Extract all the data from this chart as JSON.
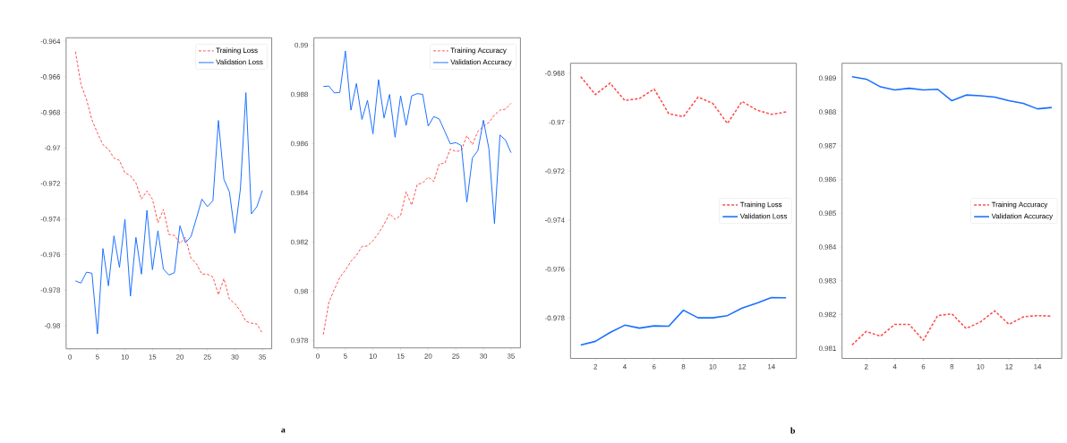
{
  "chart_data": [
    {
      "type": "line",
      "x": [
        1,
        2,
        3,
        4,
        5,
        6,
        7,
        8,
        9,
        10,
        11,
        12,
        13,
        14,
        15,
        16,
        17,
        18,
        19,
        20,
        21,
        22,
        23,
        24,
        25,
        26,
        27,
        28,
        29,
        30,
        31,
        32,
        33,
        34,
        35
      ],
      "series": [
        {
          "name": "Training Loss",
          "color": "#ff4d4d",
          "line_style": "dashed",
          "values": [
            -0.96458,
            -0.96643,
            -0.96726,
            -0.96842,
            -0.96916,
            -0.96982,
            -0.97007,
            -0.97057,
            -0.9707,
            -0.9714,
            -0.97156,
            -0.97197,
            -0.97288,
            -0.97242,
            -0.97288,
            -0.97421,
            -0.97346,
            -0.97487,
            -0.97492,
            -0.97537,
            -0.97503,
            -0.97619,
            -0.97652,
            -0.9771,
            -0.9771,
            -0.97726,
            -0.97826,
            -0.97735,
            -0.97851,
            -0.97876,
            -0.97917,
            -0.97975,
            -0.97986,
            -0.97991,
            -0.98041
          ]
        },
        {
          "name": "Validation Loss",
          "color": "#1a6fff",
          "line_style": "solid",
          "values": [
            -0.97748,
            -0.9776,
            -0.97699,
            -0.97705,
            -0.98046,
            -0.97566,
            -0.97776,
            -0.97495,
            -0.97672,
            -0.97401,
            -0.97834,
            -0.97503,
            -0.9771,
            -0.97351,
            -0.97685,
            -0.97466,
            -0.97682,
            -0.97715,
            -0.97702,
            -0.97438,
            -0.97533,
            -0.975,
            -0.97396,
            -0.97288,
            -0.9733,
            -0.97297,
            -0.96845,
            -0.97176,
            -0.97247,
            -0.97479,
            -0.9723,
            -0.96689,
            -0.97371,
            -0.9733,
            -0.97239
          ]
        }
      ],
      "xlim": [
        -0.7,
        36.7
      ],
      "ylim": [
        -0.9813,
        -0.9638
      ],
      "xticks": [
        0,
        5,
        10,
        15,
        20,
        25,
        30,
        35
      ],
      "yticks": [
        -0.98,
        -0.978,
        -0.976,
        -0.974,
        -0.972,
        -0.97,
        -0.968,
        -0.966,
        -0.964
      ],
      "legend": "top right",
      "grid": false,
      "annotations": [
        "a"
      ]
    },
    {
      "type": "line",
      "x": [
        1,
        2,
        3,
        4,
        5,
        6,
        7,
        8,
        9,
        10,
        11,
        12,
        13,
        14,
        15,
        16,
        17,
        18,
        19,
        20,
        21,
        22,
        23,
        24,
        25,
        26,
        27,
        28,
        29,
        30,
        31,
        32,
        33,
        34,
        35
      ],
      "series": [
        {
          "name": "Training Accuracy",
          "color": "#ff4d4d",
          "line_style": "dashed",
          "values": [
            0.97824,
            0.97954,
            0.98008,
            0.98056,
            0.98086,
            0.98122,
            0.98146,
            0.98182,
            0.98184,
            0.98206,
            0.98236,
            0.98272,
            0.98316,
            0.98292,
            0.98308,
            0.98404,
            0.9835,
            0.98434,
            0.9844,
            0.98464,
            0.98446,
            0.98518,
            0.9852,
            0.98578,
            0.98568,
            0.98572,
            0.98632,
            0.98596,
            0.9865,
            0.98671,
            0.98686,
            0.98716,
            0.98736,
            0.9874,
            0.98764
          ]
        },
        {
          "name": "Validation Accuracy",
          "color": "#1a6fff",
          "line_style": "solid",
          "values": [
            0.98832,
            0.98834,
            0.98806,
            0.98808,
            0.98976,
            0.98736,
            0.98844,
            0.98698,
            0.98776,
            0.9864,
            0.9886,
            0.98704,
            0.988,
            0.98626,
            0.98794,
            0.98674,
            0.98794,
            0.98803,
            0.988,
            0.98671,
            0.9871,
            0.987,
            0.9865,
            0.98599,
            0.98604,
            0.98592,
            0.98362,
            0.98542,
            0.98572,
            0.98695,
            0.98578,
            0.98275,
            0.98635,
            0.98614,
            0.98563
          ]
        }
      ],
      "xlim": [
        -0.7,
        36.7
      ],
      "ylim": [
        0.9777,
        0.9903
      ],
      "xticks": [
        0,
        5,
        10,
        15,
        20,
        25,
        30,
        35
      ],
      "yticks": [
        0.978,
        0.98,
        0.982,
        0.984,
        0.986,
        0.988,
        0.99
      ],
      "legend": "top right",
      "grid": false
    },
    {
      "type": "line",
      "x": [
        1,
        2,
        3,
        4,
        5,
        6,
        7,
        8,
        9,
        10,
        11,
        12,
        13,
        14,
        15
      ],
      "series": [
        {
          "name": "Training Loss",
          "color": "#ff4d4d",
          "line_style": "dashed",
          "values": [
            -0.96814,
            -0.96887,
            -0.9684,
            -0.96911,
            -0.96903,
            -0.96864,
            -0.96965,
            -0.96977,
            -0.96897,
            -0.96923,
            -0.97005,
            -0.96915,
            -0.9695,
            -0.96968,
            -0.96958
          ]
        },
        {
          "name": "Validation Loss",
          "color": "#1a6fff",
          "line_style": "solid",
          "values": [
            -0.9791,
            -0.97895,
            -0.97859,
            -0.97829,
            -0.97841,
            -0.97832,
            -0.97833,
            -0.97768,
            -0.97799,
            -0.97799,
            -0.9779,
            -0.97759,
            -0.97739,
            -0.97716,
            -0.97717
          ]
        }
      ],
      "xlim": [
        0.3,
        15.7
      ],
      "ylim": [
        -0.97965,
        -0.96759
      ],
      "xticks": [
        2,
        4,
        6,
        8,
        10,
        12,
        14
      ],
      "yticks": [
        -0.978,
        -0.976,
        -0.974,
        -0.972,
        -0.97,
        -0.968
      ],
      "legend": "right",
      "grid": false,
      "annotations": [
        "b"
      ]
    },
    {
      "type": "line",
      "x": [
        1,
        2,
        3,
        4,
        5,
        6,
        7,
        8,
        9,
        10,
        11,
        12,
        13,
        14,
        15
      ],
      "series": [
        {
          "name": "Training Accuracy",
          "color": "#ff4d4d",
          "line_style": "dashed",
          "values": [
            0.9811,
            0.9815,
            0.98136,
            0.98171,
            0.98171,
            0.98124,
            0.98197,
            0.98202,
            0.98159,
            0.98178,
            0.98211,
            0.98171,
            0.98193,
            0.98197,
            0.98195
          ]
        },
        {
          "name": "Validation Accuracy",
          "color": "#1a6fff",
          "line_style": "solid",
          "values": [
            0.98904,
            0.98897,
            0.98874,
            0.98865,
            0.9887,
            0.98865,
            0.98867,
            0.98833,
            0.9885,
            0.98848,
            0.98844,
            0.98833,
            0.98825,
            0.98809,
            0.98813
          ]
        }
      ],
      "xlim": [
        0.3,
        15.7
      ],
      "ylim": [
        0.9807,
        0.98944
      ],
      "xticks": [
        2,
        4,
        6,
        8,
        10,
        12,
        14
      ],
      "yticks": [
        0.981,
        0.982,
        0.983,
        0.984,
        0.985,
        0.986,
        0.987,
        0.988,
        0.989
      ],
      "legend": "right",
      "grid": false
    }
  ]
}
